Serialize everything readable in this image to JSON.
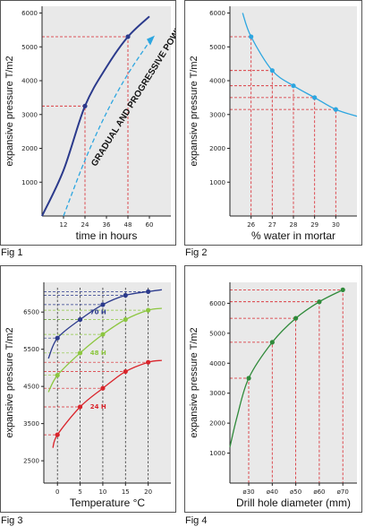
{
  "chart_data": [
    {
      "figure": "Fig 1",
      "type": "line",
      "xlabel": "time in hours",
      "ylabel": "expansive pressure T/m2",
      "xticks": [
        12,
        24,
        36,
        48,
        60
      ],
      "yticks": [
        1000,
        2000,
        3000,
        4000,
        5000,
        6000
      ],
      "xlim": [
        0,
        72
      ],
      "ylim": [
        0,
        6200
      ],
      "series": [
        {
          "values": [
            [
              0,
              0
            ],
            [
              12,
              1350
            ],
            [
              24,
              3250
            ],
            [
              36,
              4400
            ],
            [
              48,
              5300
            ],
            [
              60,
              5900
            ]
          ],
          "color": "#2b3a8c"
        },
        {
          "values": [
            [
              12,
              0
            ],
            [
              24,
              1650
            ],
            [
              36,
              3050
            ],
            [
              48,
              4200
            ],
            [
              60,
              5150
            ]
          ],
          "color": "#2da6e0",
          "dashed": true
        }
      ],
      "markers": [
        [
          24,
          3250
        ],
        [
          48,
          5300
        ]
      ],
      "annotation": "GRADUAL AND PROGRESSIVE POWER"
    },
    {
      "figure": "Fig 2",
      "type": "line",
      "xlabel": "% water in mortar",
      "ylabel": "expansive pressure T/m2",
      "xticks": [
        26,
        27,
        28,
        29,
        30
      ],
      "yticks": [
        1000,
        2000,
        3000,
        4000,
        5000,
        6000
      ],
      "xlim": [
        25,
        31
      ],
      "ylim": [
        0,
        6200
      ],
      "series": [
        {
          "values": [
            [
              25.6,
              6000
            ],
            [
              26,
              5300
            ],
            [
              27,
              4300
            ],
            [
              28,
              3850
            ],
            [
              29,
              3500
            ],
            [
              30,
              3150
            ],
            [
              31,
              2950
            ]
          ],
          "color": "#2da6e0"
        }
      ],
      "markers": [
        [
          26,
          5300
        ],
        [
          27,
          4300
        ],
        [
          28,
          3850
        ],
        [
          29,
          3500
        ],
        [
          30,
          3150
        ]
      ]
    },
    {
      "figure": "Fig 3",
      "type": "line",
      "xlabel": "Temperature °C",
      "ylabel": "expansive pressure T/m2",
      "xticks": [
        0,
        5,
        10,
        15,
        20
      ],
      "yticks": [
        2500,
        3500,
        4500,
        5500,
        6500
      ],
      "xlim": [
        -3,
        25
      ],
      "ylim": [
        1900,
        7300
      ],
      "series": [
        {
          "name": "70 H",
          "values": [
            [
              -2,
              5250
            ],
            [
              0,
              5800
            ],
            [
              5,
              6300
            ],
            [
              10,
              6700
            ],
            [
              15,
              6950
            ],
            [
              20,
              7050
            ],
            [
              23,
              7100
            ]
          ],
          "color": "#2b3a8c"
        },
        {
          "name": "48 H",
          "values": [
            [
              -2,
              4350
            ],
            [
              0,
              4800
            ],
            [
              5,
              5400
            ],
            [
              10,
              5900
            ],
            [
              15,
              6300
            ],
            [
              20,
              6550
            ],
            [
              23,
              6600
            ]
          ],
          "color": "#8cc63f"
        },
        {
          "name": "24 H",
          "values": [
            [
              -1,
              2850
            ],
            [
              0,
              3200
            ],
            [
              5,
              3950
            ],
            [
              10,
              4450
            ],
            [
              15,
              4900
            ],
            [
              20,
              5150
            ],
            [
              23,
              5200
            ]
          ],
          "color": "#d9242b"
        }
      ]
    },
    {
      "figure": "Fig 4",
      "type": "line",
      "xlabel": "Drill hole diameter (mm)",
      "ylabel": "expansive pressure T/m2",
      "xticks": [
        "ø30",
        "ø40",
        "ø50",
        "ø60",
        "ø70"
      ],
      "xvalues": [
        30,
        40,
        50,
        60,
        70
      ],
      "yticks": [
        1000,
        2000,
        3000,
        4000,
        5000,
        6000
      ],
      "xlim": [
        22,
        76
      ],
      "ylim": [
        0,
        6700
      ],
      "series": [
        {
          "values": [
            [
              22,
              1200
            ],
            [
              25,
              2200
            ],
            [
              30,
              3500
            ],
            [
              40,
              4700
            ],
            [
              50,
              5500
            ],
            [
              60,
              6050
            ],
            [
              70,
              6450
            ]
          ],
          "color": "#2f8a3a"
        }
      ],
      "markers": [
        [
          30,
          3500
        ],
        [
          40,
          4700
        ],
        [
          50,
          5500
        ],
        [
          60,
          6050
        ],
        [
          70,
          6450
        ]
      ]
    }
  ],
  "figure_labels": [
    "Fig 1",
    "Fig 2",
    "Fig 3",
    "Fig 4"
  ]
}
